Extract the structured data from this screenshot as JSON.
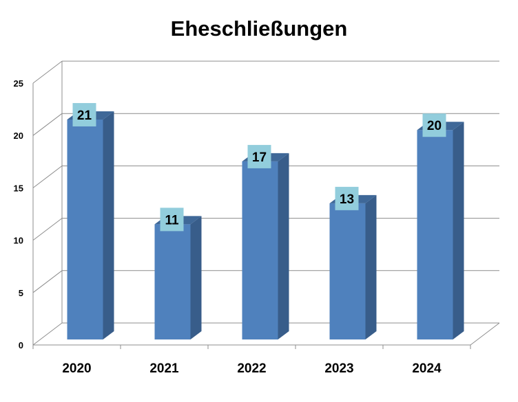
{
  "chart_data": {
    "type": "bar",
    "title": "Eheschließungen",
    "categories": [
      "2020",
      "2021",
      "2022",
      "2023",
      "2024"
    ],
    "values": [
      21,
      11,
      17,
      13,
      20
    ],
    "ylim": [
      0,
      25
    ],
    "yticks": [
      0,
      5,
      10,
      15,
      20,
      25
    ],
    "grid": true,
    "legend": "none",
    "data_labels": true,
    "style": "3d-column",
    "colors": {
      "bar_front": "#4F81BD",
      "bar_side": "#385D8A",
      "bar_top": "#3F6898",
      "label_box": "#92CDDC",
      "grid": "#8C8C8C"
    }
  }
}
